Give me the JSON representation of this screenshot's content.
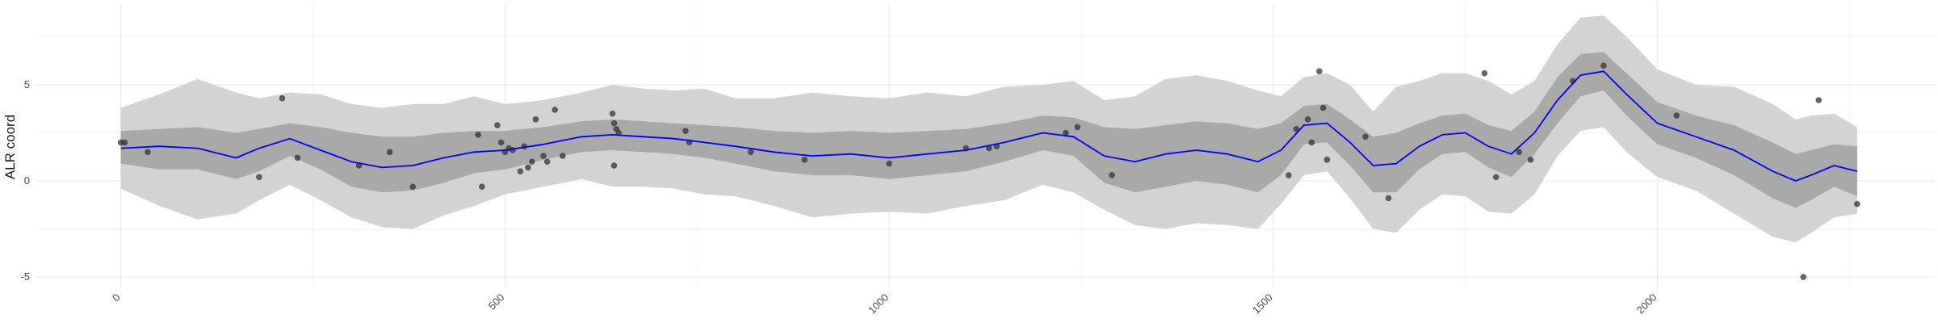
{
  "chart_data": {
    "type": "line",
    "title": "",
    "xlabel": "",
    "ylabel": "ALR coord",
    "xlim": [
      -110,
      2360
    ],
    "ylim": [
      -5.5,
      9.2
    ],
    "x_ticks": [
      0,
      500,
      1000,
      1500,
      2000
    ],
    "y_ticks": [
      -5,
      0,
      5
    ],
    "x_tick_labels": [
      "0",
      "500",
      "1000",
      "1500",
      "2000"
    ],
    "y_tick_labels": [
      "-5",
      "0",
      "5"
    ],
    "grid": true,
    "legend": "none",
    "colors": {
      "line": "#0000ff",
      "band_inner": "#a9a9a9",
      "band_outer": "#d3d3d3",
      "points": "#333333"
    },
    "series": [
      {
        "type": "line",
        "x": [
          0,
          50,
          100,
          150,
          180,
          220,
          260,
          300,
          340,
          380,
          420,
          460,
          500,
          550,
          600,
          640,
          680,
          720,
          760,
          800,
          850,
          900,
          950,
          1000,
          1050,
          1100,
          1150,
          1200,
          1240,
          1280,
          1320,
          1360,
          1400,
          1440,
          1480,
          1510,
          1540,
          1570,
          1600,
          1630,
          1660,
          1690,
          1720,
          1750,
          1780,
          1810,
          1840,
          1870,
          1900,
          1930,
          1960,
          2000,
          2050,
          2100,
          2150,
          2180,
          2200,
          2230,
          2260
        ],
        "y": [
          1.7,
          1.8,
          1.7,
          1.2,
          1.7,
          2.2,
          1.6,
          1.0,
          0.7,
          0.8,
          1.2,
          1.5,
          1.6,
          1.9,
          2.3,
          2.4,
          2.3,
          2.2,
          2.0,
          1.8,
          1.5,
          1.3,
          1.4,
          1.2,
          1.4,
          1.6,
          2.0,
          2.5,
          2.3,
          1.3,
          1.0,
          1.4,
          1.6,
          1.4,
          1.0,
          1.6,
          2.9,
          3.0,
          2.0,
          0.8,
          0.9,
          1.8,
          2.4,
          2.5,
          1.8,
          1.4,
          2.5,
          4.2,
          5.5,
          5.7,
          4.5,
          3.0,
          2.3,
          1.6,
          0.5,
          0.0,
          0.3,
          0.8,
          0.5
        ]
      },
      {
        "type": "band",
        "name": "inner",
        "x": [
          0,
          50,
          100,
          150,
          180,
          220,
          260,
          300,
          340,
          380,
          420,
          460,
          500,
          550,
          600,
          640,
          680,
          720,
          760,
          800,
          850,
          900,
          950,
          1000,
          1050,
          1100,
          1150,
          1200,
          1240,
          1280,
          1320,
          1360,
          1400,
          1440,
          1480,
          1510,
          1540,
          1570,
          1600,
          1630,
          1660,
          1690,
          1720,
          1750,
          1780,
          1810,
          1840,
          1870,
          1900,
          1930,
          1960,
          2000,
          2050,
          2100,
          2150,
          2180,
          2200,
          2230,
          2260
        ],
        "upper": [
          2.6,
          2.7,
          2.8,
          2.5,
          2.7,
          3.0,
          2.8,
          2.5,
          2.3,
          2.3,
          2.5,
          2.6,
          2.6,
          2.8,
          3.1,
          3.2,
          3.1,
          3.0,
          2.9,
          2.8,
          2.6,
          2.5,
          2.6,
          2.5,
          2.6,
          2.7,
          3.0,
          3.4,
          3.3,
          2.8,
          2.7,
          2.9,
          3.1,
          3.0,
          2.7,
          3.0,
          3.9,
          4.0,
          3.2,
          2.3,
          2.5,
          3.0,
          3.4,
          3.5,
          2.9,
          2.6,
          3.6,
          5.4,
          6.6,
          6.7,
          5.6,
          4.1,
          3.4,
          2.9,
          2.0,
          1.4,
          1.6,
          1.9,
          1.8
        ],
        "lower": [
          0.9,
          0.6,
          0.6,
          0.1,
          0.5,
          1.3,
          0.6,
          -0.3,
          -0.6,
          -0.5,
          -0.1,
          0.4,
          0.6,
          1.1,
          1.5,
          1.6,
          1.5,
          1.4,
          1.2,
          0.9,
          0.5,
          0.3,
          0.3,
          0.1,
          0.3,
          0.5,
          1.0,
          1.6,
          1.3,
          -0.1,
          -0.6,
          -0.3,
          0.0,
          -0.2,
          -0.6,
          0.3,
          1.9,
          2.0,
          0.8,
          -0.6,
          -0.6,
          0.6,
          1.4,
          1.5,
          0.7,
          0.2,
          1.4,
          3.0,
          4.4,
          4.7,
          3.4,
          1.9,
          1.2,
          0.3,
          -0.9,
          -1.4,
          -1.0,
          -0.3,
          -0.8
        ]
      },
      {
        "type": "band",
        "name": "outer",
        "x": [
          0,
          50,
          100,
          150,
          180,
          220,
          260,
          300,
          340,
          380,
          420,
          460,
          500,
          550,
          600,
          640,
          680,
          720,
          760,
          800,
          850,
          900,
          950,
          1000,
          1050,
          1100,
          1150,
          1200,
          1240,
          1280,
          1320,
          1360,
          1400,
          1440,
          1480,
          1510,
          1540,
          1570,
          1600,
          1630,
          1660,
          1690,
          1720,
          1750,
          1780,
          1810,
          1840,
          1870,
          1900,
          1930,
          1960,
          2000,
          2050,
          2100,
          2150,
          2180,
          2200,
          2230,
          2260
        ],
        "upper": [
          3.8,
          4.5,
          5.3,
          4.6,
          4.3,
          4.6,
          4.5,
          4.0,
          3.8,
          4.0,
          4.0,
          4.4,
          4.0,
          4.2,
          4.6,
          5.0,
          4.8,
          4.7,
          4.8,
          4.3,
          4.3,
          4.6,
          4.4,
          4.3,
          4.6,
          4.4,
          4.9,
          5.0,
          5.2,
          4.2,
          4.4,
          5.3,
          5.5,
          5.2,
          4.7,
          4.4,
          5.4,
          5.6,
          5.0,
          3.6,
          4.9,
          5.2,
          5.6,
          5.6,
          5.2,
          4.5,
          5.2,
          7.1,
          8.5,
          8.6,
          7.5,
          5.8,
          5.0,
          4.9,
          4.0,
          3.2,
          3.4,
          3.5,
          2.8
        ],
        "lower": [
          -0.4,
          -1.3,
          -2.0,
          -1.7,
          -1.0,
          -0.2,
          -1.0,
          -1.9,
          -2.4,
          -2.5,
          -1.8,
          -1.3,
          -0.7,
          -0.3,
          0.1,
          -0.3,
          -0.3,
          -0.4,
          -0.7,
          -0.8,
          -1.3,
          -1.9,
          -1.7,
          -1.6,
          -1.7,
          -1.3,
          -1.0,
          -0.2,
          -0.6,
          -1.5,
          -2.3,
          -2.5,
          -2.2,
          -2.3,
          -2.5,
          -1.2,
          0.3,
          0.5,
          -0.9,
          -2.5,
          -2.7,
          -1.5,
          -0.7,
          -0.8,
          -1.6,
          -1.7,
          -0.7,
          1.3,
          2.6,
          2.8,
          1.5,
          0.2,
          -0.5,
          -1.7,
          -2.9,
          -3.2,
          -2.7,
          -1.9,
          -1.7
        ]
      },
      {
        "type": "scatter",
        "points": [
          [
            0,
            2.0
          ],
          [
            5,
            2.0
          ],
          [
            35,
            1.5
          ],
          [
            180,
            0.2
          ],
          [
            210,
            4.3
          ],
          [
            230,
            1.2
          ],
          [
            310,
            0.8
          ],
          [
            350,
            1.5
          ],
          [
            380,
            -0.3
          ],
          [
            465,
            2.4
          ],
          [
            470,
            -0.3
          ],
          [
            490,
            2.9
          ],
          [
            495,
            2.0
          ],
          [
            500,
            1.5
          ],
          [
            505,
            1.7
          ],
          [
            510,
            1.6
          ],
          [
            520,
            0.5
          ],
          [
            525,
            1.8
          ],
          [
            530,
            0.7
          ],
          [
            535,
            1.0
          ],
          [
            540,
            3.2
          ],
          [
            550,
            1.3
          ],
          [
            555,
            1.0
          ],
          [
            565,
            3.7
          ],
          [
            575,
            1.3
          ],
          [
            640,
            3.5
          ],
          [
            642,
            3.0
          ],
          [
            645,
            2.7
          ],
          [
            648,
            2.5
          ],
          [
            642,
            0.8
          ],
          [
            735,
            2.6
          ],
          [
            740,
            2.0
          ],
          [
            820,
            1.5
          ],
          [
            890,
            1.1
          ],
          [
            1000,
            0.9
          ],
          [
            1100,
            1.7
          ],
          [
            1130,
            1.7
          ],
          [
            1140,
            1.8
          ],
          [
            1230,
            2.5
          ],
          [
            1245,
            2.8
          ],
          [
            1290,
            0.3
          ],
          [
            1520,
            0.3
          ],
          [
            1530,
            2.7
          ],
          [
            1545,
            3.2
          ],
          [
            1550,
            2.0
          ],
          [
            1560,
            5.7
          ],
          [
            1565,
            3.8
          ],
          [
            1570,
            1.1
          ],
          [
            1620,
            2.3
          ],
          [
            1650,
            -0.9
          ],
          [
            1775,
            5.6
          ],
          [
            1790,
            0.2
          ],
          [
            1820,
            1.5
          ],
          [
            1835,
            1.1
          ],
          [
            1890,
            5.2
          ],
          [
            1930,
            6.0
          ],
          [
            2025,
            3.4
          ],
          [
            2190,
            -5.0
          ],
          [
            2210,
            4.2
          ],
          [
            2260,
            -1.2
          ]
        ]
      }
    ]
  }
}
